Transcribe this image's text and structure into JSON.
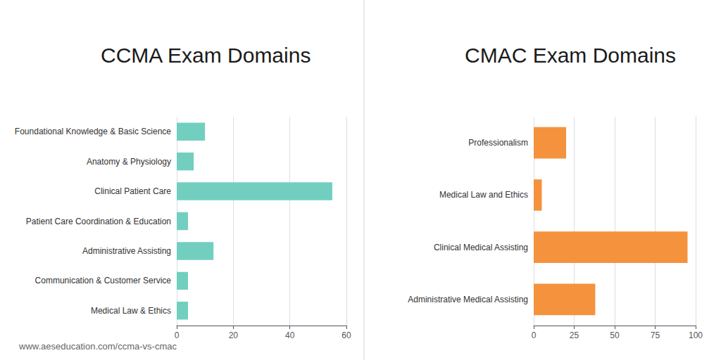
{
  "chart_data": [
    {
      "type": "bar",
      "orientation": "horizontal",
      "title": "CCMA Exam Domains",
      "categories": [
        "Foundational Knowledge & Basic Science",
        "Anatomy & Physiology",
        "Clinical Patient Care",
        "Patient Care Coordination & Education",
        "Administrative Assisting",
        "Communication & Customer Service",
        "Medical Law & Ethics"
      ],
      "values": [
        10,
        6,
        55,
        4,
        13,
        4,
        4
      ],
      "color": "#72cfc0",
      "xlim": [
        0,
        60
      ],
      "xticks": [
        0,
        20,
        40,
        60
      ],
      "grid": true,
      "annotations": [
        "www.aeseducation.com/ccma-vs-cmac"
      ]
    },
    {
      "type": "bar",
      "orientation": "horizontal",
      "title": "CMAC Exam Domains",
      "categories": [
        "Professionalism",
        "Medical Law and Ethics",
        "Clinical Medical Assisting",
        "Administrative Medical Assisting"
      ],
      "values": [
        20,
        5,
        95,
        38
      ],
      "color": "#f5923e",
      "xlim": [
        0,
        100
      ],
      "xticks": [
        0,
        25,
        50,
        75,
        100
      ],
      "grid": true
    }
  ]
}
